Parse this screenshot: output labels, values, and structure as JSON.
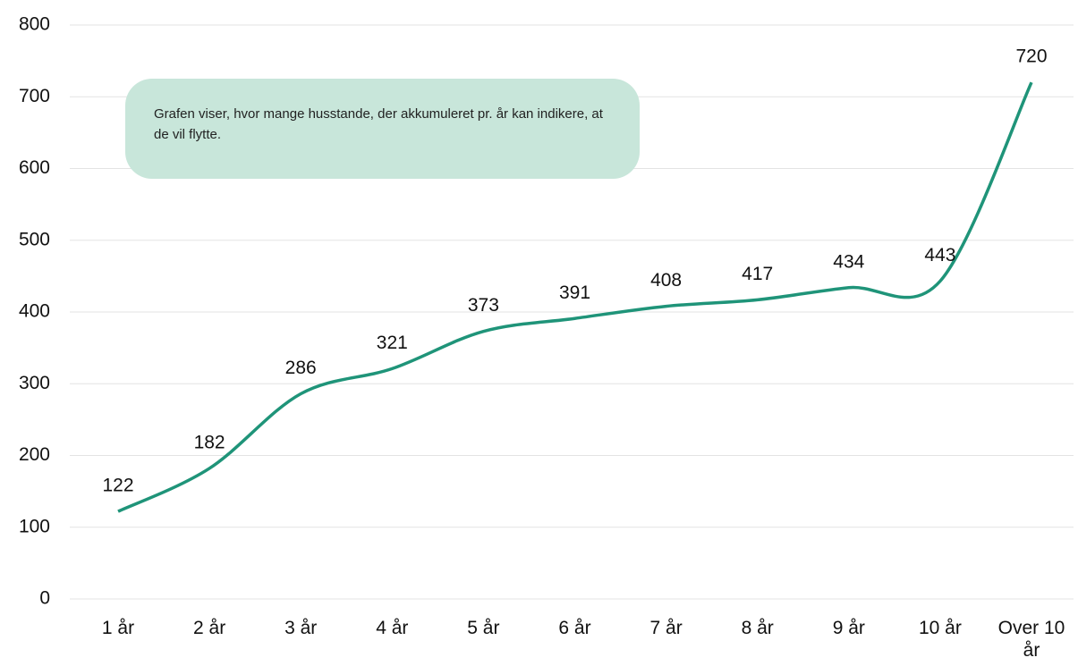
{
  "chart_data": {
    "type": "line",
    "annotation": "Grafen viser, hvor mange husstande, der akkumuleret pr. år kan indikere, at de vil flytte.",
    "categories": [
      "1 år",
      "2 år",
      "3 år",
      "4 år",
      "5 år",
      "6 år",
      "7 år",
      "8 år",
      "9 år",
      "10 år",
      "Over 10 år"
    ],
    "series": [
      {
        "name": "Husstande",
        "color": "#1f9479",
        "values": [
          122,
          182,
          286,
          321,
          373,
          391,
          408,
          417,
          434,
          443,
          720
        ]
      }
    ],
    "ylim": [
      0,
      800
    ],
    "yticks": [
      0,
      100,
      200,
      300,
      400,
      500,
      600,
      700,
      800
    ],
    "grid": true,
    "smooth": true
  }
}
